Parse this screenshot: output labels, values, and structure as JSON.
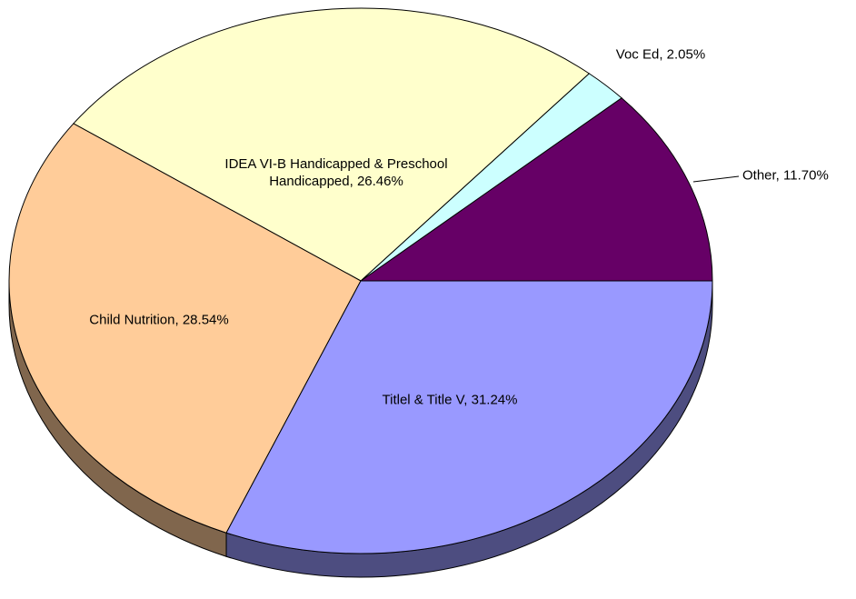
{
  "chart_data": {
    "type": "pie",
    "categories": [
      "Other,",
      "Voc Ed,",
      "IDEA VI-B Handicapped & Preschool Handicapped,",
      "Child Nutrition,",
      "Titlel & Title V,"
    ],
    "values": [
      11.7,
      2.05,
      26.46,
      28.54,
      31.24
    ],
    "value_labels": [
      "11.70%",
      "2.05%",
      "26.46%",
      "28.54%",
      "31.24%"
    ],
    "colors": [
      "#660066",
      "#ccffff",
      "#ffffcc",
      "#ffcc99",
      "#9999ff"
    ]
  }
}
